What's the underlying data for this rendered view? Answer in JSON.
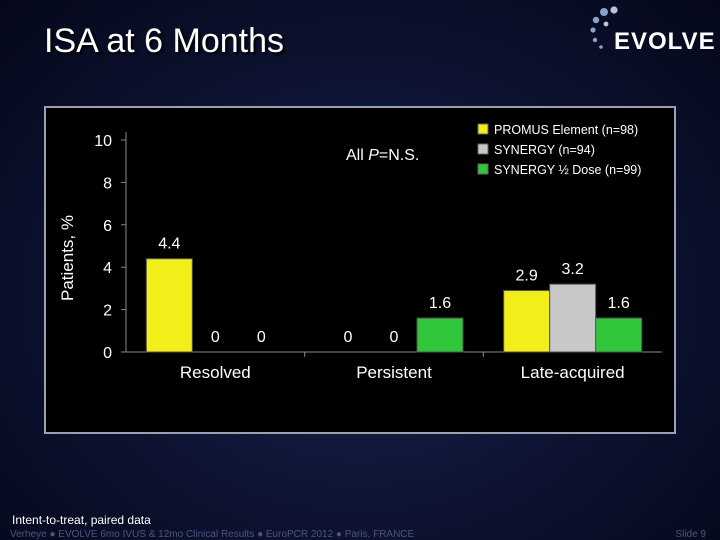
{
  "slide": {
    "title": "ISA at 6 Months",
    "logo_text": "EVOLVE",
    "footnote": "Intent-to-treat, paired data",
    "citation": "Verheye ● EVOLVE 6mo IVUS & 12mo Clinical Results ● EuroPCR 2012 ● Paris, FRANCE",
    "slide_number": "Slide 9"
  },
  "chart_data": {
    "type": "bar",
    "categories": [
      "Resolved",
      "Persistent",
      "Late-acquired"
    ],
    "ylabel": "Patients, %",
    "ylim": [
      0,
      10
    ],
    "yticks": [
      0,
      2,
      4,
      6,
      8,
      10
    ],
    "annotation_prefix": "All ",
    "annotation_italic": "P",
    "annotation_suffix": "=N.S.",
    "legend_position": "top-right",
    "series": [
      {
        "name": "PROMUS Element (n=98)",
        "color": "#f2ee1a",
        "values": [
          4.4,
          0,
          2.9
        ]
      },
      {
        "name": "SYNERGY (n=94)",
        "color": "#c8c8c8",
        "values": [
          0,
          0,
          3.2
        ]
      },
      {
        "name": "SYNERGY ½ Dose (n=99)",
        "color": "#2fc63c",
        "values": [
          0,
          1.6,
          1.6
        ]
      }
    ],
    "data_labels": [
      [
        "4.4",
        "0",
        "2.9"
      ],
      [
        "0",
        "0",
        "3.2"
      ],
      [
        "0",
        "1.6",
        "1.6"
      ]
    ]
  }
}
